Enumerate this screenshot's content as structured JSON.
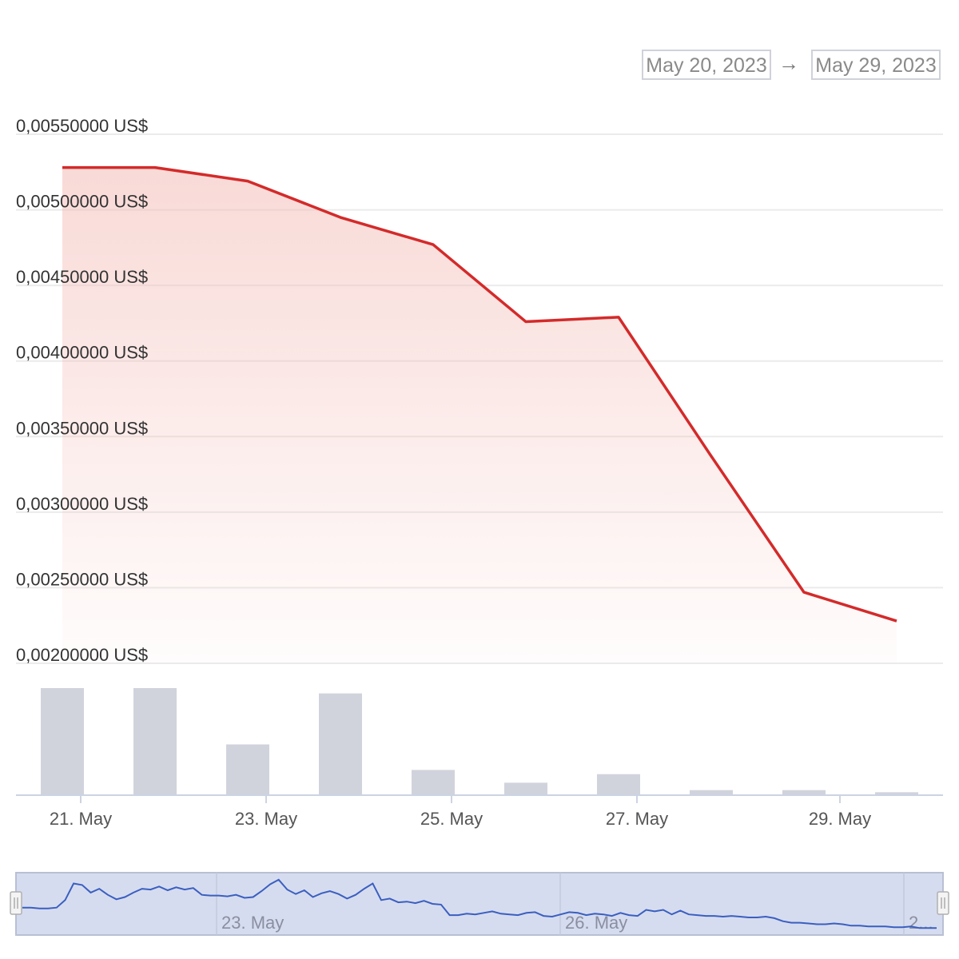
{
  "range_selector": {
    "from": "May 20, 2023",
    "arrow": "→",
    "to": "May 29, 2023"
  },
  "colors": {
    "price_line": "#d42a2a",
    "volume_bar": "#d1d3dc",
    "navigator_line": "#3a5fc0",
    "navigator_fill": "#d6dcef"
  },
  "chart_data": [
    {
      "type": "area",
      "series": [
        {
          "x": [
            "May 20",
            "May 21",
            "May 22",
            "May 23",
            "May 24",
            "May 25",
            "May 26",
            "May 27",
            "May 28",
            "May 29"
          ],
          "values": [
            0.00528,
            0.00528,
            0.00519,
            0.00495,
            0.00477,
            0.00426,
            0.00429,
            0.00337,
            0.00247,
            0.00228
          ]
        }
      ],
      "ylim": [
        0.002,
        0.0055
      ],
      "yticks": [
        "0,00550000 US$",
        "0,00500000 US$",
        "0,00450000 US$",
        "0,00400000 US$",
        "0,00350000 US$",
        "0,00300000 US$",
        "0,00250000 US$",
        "0,00200000 US$"
      ],
      "grid": true
    },
    {
      "type": "bar",
      "categories": [
        "May 20",
        "May 21",
        "May 22",
        "May 23",
        "May 24",
        "May 25",
        "May 26",
        "May 27",
        "May 28",
        "May 29"
      ],
      "values": [
        100,
        100,
        47,
        95,
        23,
        11,
        19,
        4,
        4,
        2
      ],
      "xticks": [
        "21. May",
        "23. May",
        "25. May",
        "27. May",
        "29. May"
      ]
    },
    {
      "type": "line",
      "xticks": [
        "23. May",
        "26. May",
        "2..."
      ],
      "series": [
        {
          "values": [
            30,
            30,
            29,
            29,
            30,
            40,
            62,
            60,
            50,
            55,
            47,
            41,
            44,
            50,
            55,
            54,
            58,
            53,
            57,
            54,
            56,
            47,
            46,
            46,
            45,
            47,
            43,
            44,
            52,
            61,
            67,
            54,
            48,
            53,
            44,
            49,
            52,
            48,
            42,
            47,
            55,
            62,
            40,
            42,
            37,
            38,
            36,
            39,
            35,
            34,
            20,
            20,
            22,
            21,
            23,
            25,
            22,
            21,
            20,
            23,
            24,
            19,
            18,
            21,
            24,
            23,
            20,
            22,
            21,
            19,
            23,
            20,
            19,
            27,
            25,
            27,
            21,
            26,
            21,
            20,
            19,
            19,
            18,
            19,
            18,
            17,
            17,
            18,
            16,
            12,
            10,
            10,
            9,
            8,
            8,
            9,
            8,
            6,
            6,
            5,
            5,
            5,
            4,
            4,
            5,
            3,
            3,
            3
          ]
        }
      ]
    }
  ]
}
